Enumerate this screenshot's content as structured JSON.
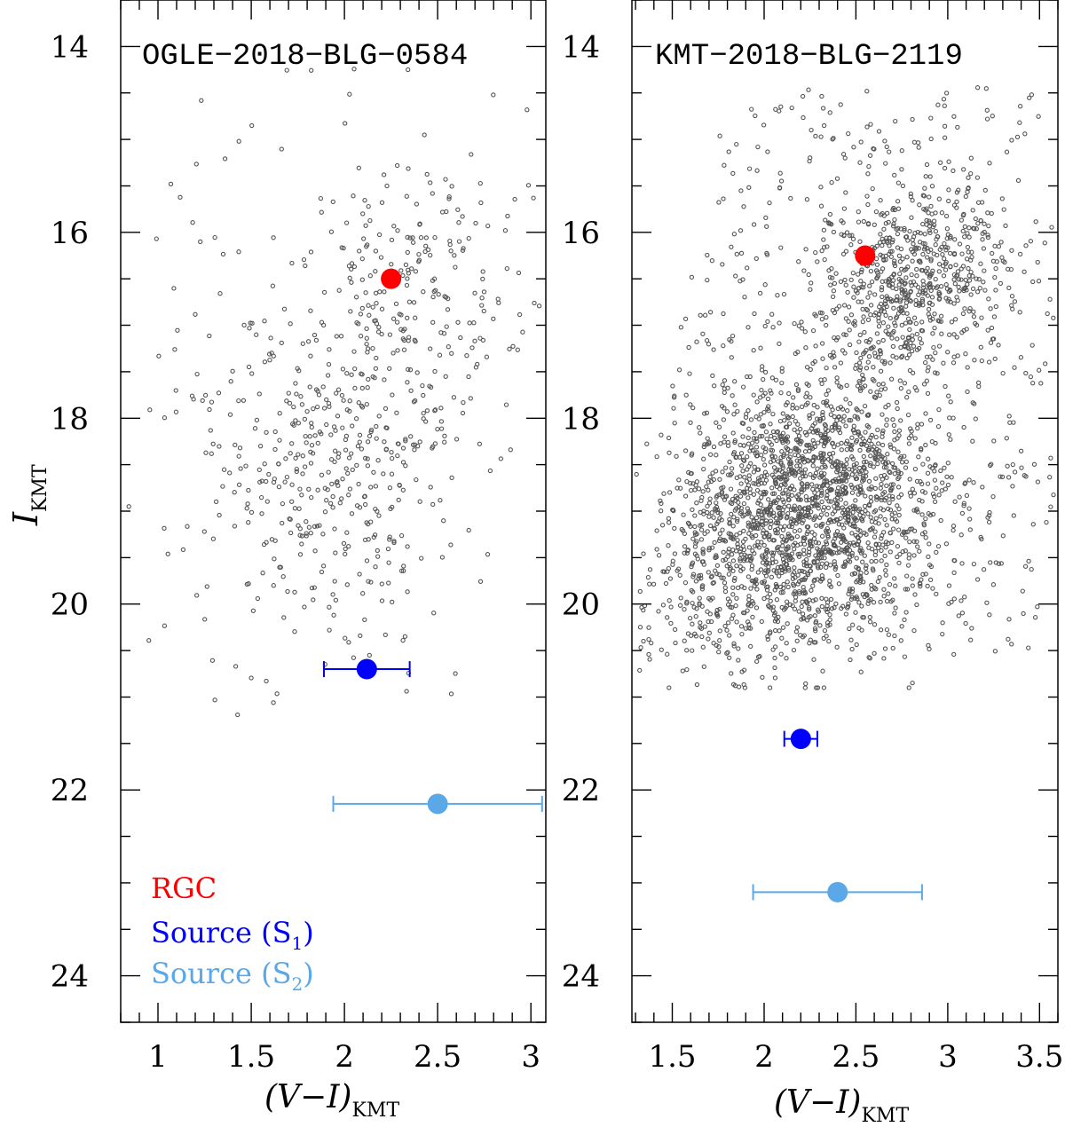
{
  "chart_data": [
    {
      "type": "scatter",
      "title": "OGLE−2018−BLG−0584",
      "xlabel_main": "(V−I)",
      "xlabel_sub": "KMT",
      "ylabel_main": "I",
      "ylabel_sub": "KMT",
      "xlim": [
        0.8,
        3.08
      ],
      "ylim": [
        24.5,
        13.5
      ],
      "x_ticks": [
        "1",
        "1.5",
        "2",
        "2.5",
        "3"
      ],
      "x_tick_values": [
        1,
        1.5,
        2,
        2.5,
        3
      ],
      "y_ticks": [
        "14",
        "16",
        "18",
        "20",
        "22",
        "24"
      ],
      "y_tick_values": [
        14,
        16,
        18,
        20,
        22,
        24
      ],
      "grid": false,
      "field_stars": {
        "description": "Field stars in the CMD",
        "count": 700,
        "clump_center": [
          2.0,
          18.3
        ]
      },
      "markers": [
        {
          "name": "RGC",
          "x": 2.25,
          "y": 16.5,
          "color": "#ff0000",
          "xerr": null
        },
        {
          "name": "Source (S1)",
          "x": 2.12,
          "y": 20.7,
          "color": "#0000ff",
          "xerr": 0.23
        },
        {
          "name": "Source (S2)",
          "x": 2.5,
          "y": 22.15,
          "color": "#5ba8e8",
          "xerr": 0.56
        }
      ],
      "legend": {
        "placement": "bottom-left",
        "items": [
          {
            "label": "RGC",
            "color": "#ff0000"
          },
          {
            "label_main": "Source (S",
            "label_sub": "1",
            "label_end": ")",
            "color": "#0000ff"
          },
          {
            "label_main": "Source (S",
            "label_sub": "2",
            "label_end": ")",
            "color": "#5ba8e8"
          }
        ]
      }
    },
    {
      "type": "scatter",
      "title": "KMT−2018−BLG−2119",
      "xlabel_main": "(V−I)",
      "xlabel_sub": "KMT",
      "xlim": [
        1.28,
        3.6
      ],
      "ylim": [
        24.5,
        13.5
      ],
      "x_ticks": [
        "1.5",
        "2",
        "2.5",
        "3",
        "3.5"
      ],
      "x_tick_values": [
        1.5,
        2,
        2.5,
        3,
        3.5
      ],
      "y_ticks": [
        "14",
        "16",
        "18",
        "20",
        "22",
        "24"
      ],
      "y_tick_values": [
        14,
        16,
        18,
        20,
        22,
        24
      ],
      "grid": false,
      "field_stars": {
        "description": "Dense field stars in the CMD",
        "count": 3200,
        "clump_center": [
          2.3,
          18.9
        ]
      },
      "markers": [
        {
          "name": "RGC",
          "x": 2.55,
          "y": 16.25,
          "color": "#ff0000",
          "xerr": null
        },
        {
          "name": "Source (S1)",
          "x": 2.2,
          "y": 21.45,
          "color": "#0000ff",
          "xerr": 0.09
        },
        {
          "name": "Source (S2)",
          "x": 2.4,
          "y": 23.1,
          "color": "#5ba8e8",
          "xerr": 0.46
        }
      ]
    }
  ]
}
